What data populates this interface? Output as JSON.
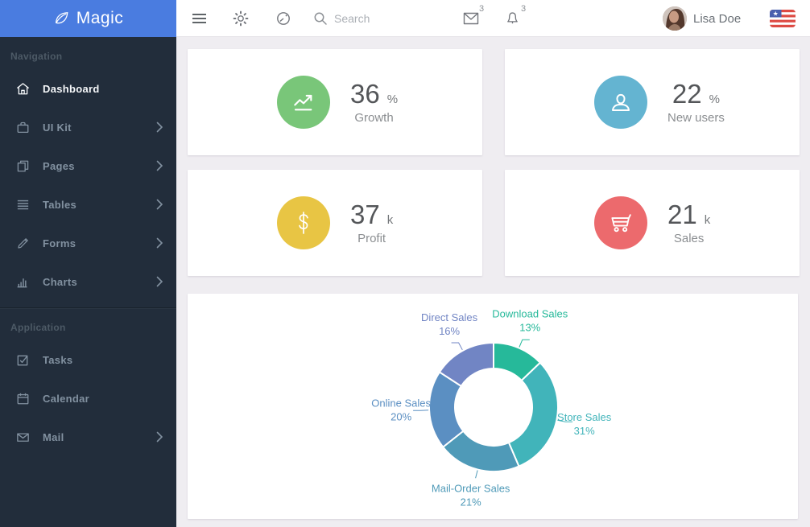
{
  "brand": {
    "name": "Magic"
  },
  "header": {
    "search_placeholder": "Search",
    "mail_badge": "3",
    "notifications_badge": "3",
    "user_name": "Lisa Doe"
  },
  "sidebar": {
    "sections": [
      {
        "label": "Navigation",
        "items": [
          {
            "label": "Dashboard",
            "icon": "home-icon",
            "active": true,
            "has_submenu": false
          },
          {
            "label": "UI Kit",
            "icon": "briefcase-icon",
            "active": false,
            "has_submenu": true
          },
          {
            "label": "Pages",
            "icon": "pages-icon",
            "active": false,
            "has_submenu": true
          },
          {
            "label": "Tables",
            "icon": "list-icon",
            "active": false,
            "has_submenu": true
          },
          {
            "label": "Forms",
            "icon": "pencil-icon",
            "active": false,
            "has_submenu": true
          },
          {
            "label": "Charts",
            "icon": "bar-chart-icon",
            "active": false,
            "has_submenu": true
          }
        ]
      },
      {
        "label": "Application",
        "items": [
          {
            "label": "Tasks",
            "icon": "tasks-icon",
            "active": false,
            "has_submenu": false
          },
          {
            "label": "Calendar",
            "icon": "calendar-icon",
            "active": false,
            "has_submenu": false
          },
          {
            "label": "Mail",
            "icon": "mail-icon",
            "active": false,
            "has_submenu": true
          }
        ]
      }
    ]
  },
  "stats": [
    {
      "value": "36",
      "unit": "%",
      "label": "Growth",
      "icon": "trend-up-icon",
      "color": "#79c679"
    },
    {
      "value": "22",
      "unit": "%",
      "label": "New users",
      "icon": "user-icon",
      "color": "#64b4d1"
    },
    {
      "value": "37",
      "unit": "k",
      "label": "Profit",
      "icon": "dollar-icon",
      "color": "#e8c544"
    },
    {
      "value": "21",
      "unit": "k",
      "label": "Sales",
      "icon": "cart-icon",
      "color": "#ec6a6d"
    }
  ],
  "chart_data": {
    "type": "pie",
    "subtype": "donut",
    "title": "",
    "legend": "none",
    "start_angle_deg": 0,
    "direction": "clockwise",
    "inner_radius": 48,
    "outer_radius": 80,
    "label_format": "{name} {value}%",
    "segments": [
      {
        "name": "Download Sales",
        "value": 13,
        "color": "#26b99a"
      },
      {
        "name": "Store Sales",
        "value": 31,
        "color": "#41b4ba"
      },
      {
        "name": "Mail-Order Sales",
        "value": 21,
        "color": "#4f9ab8"
      },
      {
        "name": "Online Sales",
        "value": 20,
        "color": "#5b8fc2"
      },
      {
        "name": "Direct Sales",
        "value": 16,
        "color": "#7185c4"
      }
    ]
  }
}
